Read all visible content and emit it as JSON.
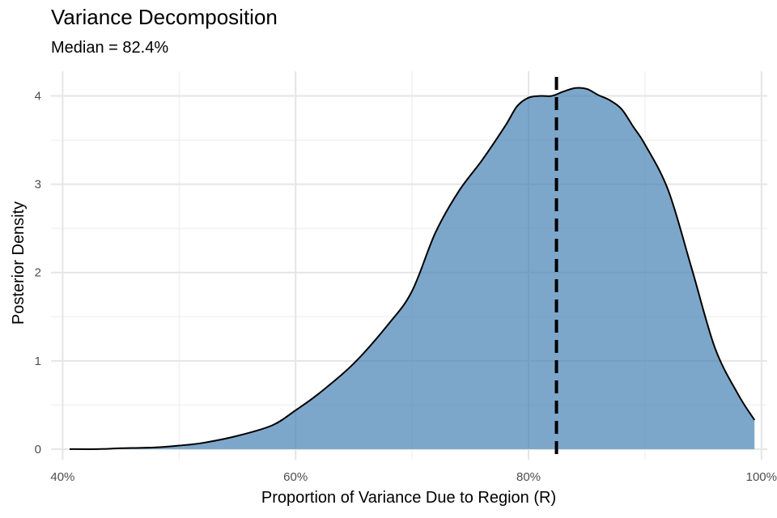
{
  "chart_data": {
    "type": "area",
    "title": "Variance Decomposition",
    "subtitle": "Median = 82.4%",
    "xlabel": "Proportion of Variance Due to Region (R)",
    "ylabel": "Posterior Density",
    "xlim": [
      0.39,
      1.005
    ],
    "ylim": [
      -0.12,
      4.28
    ],
    "x_ticks": [
      {
        "value": 0.4,
        "label": "40%"
      },
      {
        "value": 0.6,
        "label": "60%"
      },
      {
        "value": 0.8,
        "label": "80%"
      },
      {
        "value": 1.0,
        "label": "100%"
      }
    ],
    "y_ticks": [
      {
        "value": 0,
        "label": "0"
      },
      {
        "value": 1,
        "label": "1"
      },
      {
        "value": 2,
        "label": "2"
      },
      {
        "value": 3,
        "label": "3"
      },
      {
        "value": 4,
        "label": "4"
      }
    ],
    "grid": true,
    "median": 0.824,
    "fill_color": "#4682b4",
    "fill_opacity": 0.7,
    "line_color": "#000000",
    "x": [
      0.406,
      0.43,
      0.45,
      0.48,
      0.5,
      0.52,
      0.55,
      0.58,
      0.6,
      0.62,
      0.65,
      0.68,
      0.7,
      0.72,
      0.74,
      0.76,
      0.78,
      0.79,
      0.8,
      0.81,
      0.82,
      0.83,
      0.84,
      0.85,
      0.86,
      0.87,
      0.88,
      0.89,
      0.9,
      0.92,
      0.94,
      0.96,
      0.98,
      0.994
    ],
    "y": [
      0.0,
      0.0,
      0.01,
      0.02,
      0.04,
      0.07,
      0.15,
      0.27,
      0.44,
      0.63,
      0.97,
      1.42,
      1.79,
      2.45,
      2.92,
      3.27,
      3.66,
      3.88,
      3.98,
      4.0,
      4.0,
      4.05,
      4.09,
      4.08,
      4.01,
      3.95,
      3.85,
      3.65,
      3.45,
      2.93,
      2.05,
      1.15,
      0.62,
      0.33
    ]
  }
}
